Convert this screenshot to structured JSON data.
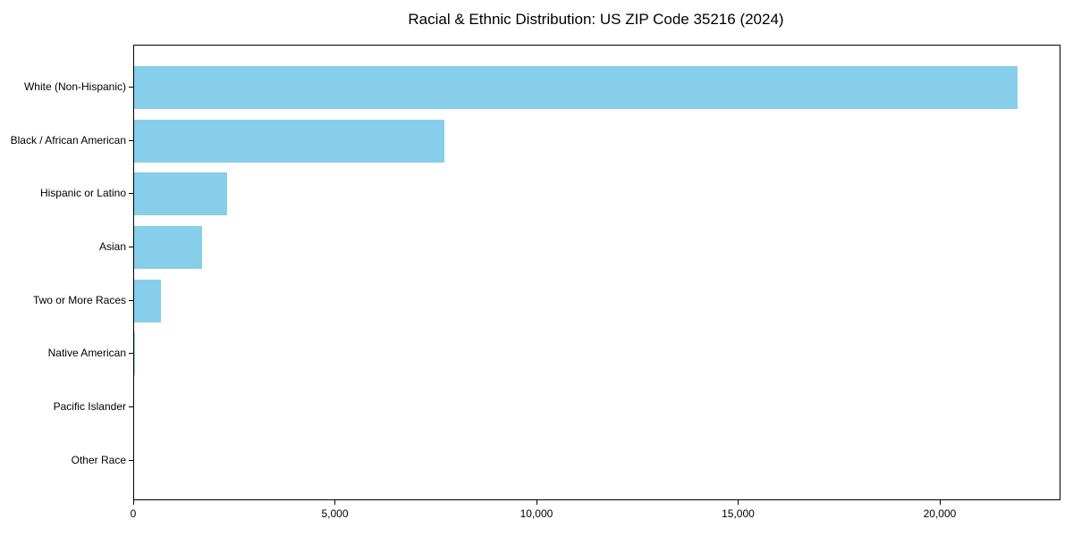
{
  "chart_data": {
    "type": "bar",
    "orientation": "horizontal",
    "title": "Racial & Ethnic Distribution: US ZIP Code 35216 (2024)",
    "categories": [
      "White (Non-Hispanic)",
      "Black / African American",
      "Hispanic or Latino",
      "Asian",
      "Two or More Races",
      "Native American",
      "Pacific Islander",
      "Other Race"
    ],
    "values": [
      21900,
      7700,
      2300,
      1680,
      670,
      25,
      0,
      0
    ],
    "bar_color": "#87CEEB",
    "xlabel": "",
    "ylabel": "",
    "xlim": [
      0,
      22950
    ],
    "x_ticks": [
      0,
      5000,
      10000,
      15000,
      20000
    ],
    "x_tick_labels": [
      "0",
      "5,000",
      "10,000",
      "15,000",
      "20,000"
    ],
    "grid": false,
    "legend": null,
    "frame": true,
    "background_color": "#FFFFFF",
    "text_color": "#000000"
  }
}
